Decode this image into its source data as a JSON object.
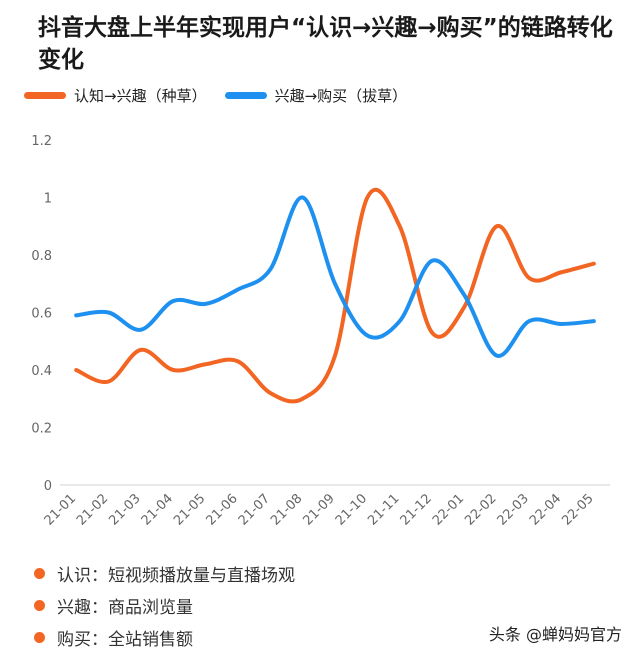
{
  "title": "抖音大盘上半年实现用户“认识→兴趣→购买”的链路转化变化",
  "colors": {
    "orange": "#f26522",
    "blue": "#1e90f0",
    "axis": "#d0d0d0",
    "tick": "#666666"
  },
  "chart_data": {
    "type": "line",
    "categories": [
      "21-01",
      "21-02",
      "21-03",
      "21-04",
      "21-05",
      "21-06",
      "21-07",
      "21-08",
      "21-09",
      "21-10",
      "21-11",
      "21-12",
      "22-01",
      "22-02",
      "22-03",
      "22-04",
      "22-05"
    ],
    "ylim": [
      0,
      1.2
    ],
    "yticks": [
      "0",
      "0.2",
      "0.4",
      "0.6",
      "0.8",
      "1",
      "1.2"
    ],
    "grid": false,
    "legend_position": "top-left",
    "series": [
      {
        "name": "认知→兴趣（种草）",
        "color": "#f26522",
        "values": [
          0.4,
          0.36,
          0.47,
          0.4,
          0.42,
          0.43,
          0.32,
          0.3,
          0.45,
          1.0,
          0.9,
          0.53,
          0.62,
          0.9,
          0.72,
          0.74,
          0.77
        ]
      },
      {
        "name": "兴趣→购买（拔草）",
        "color": "#1e90f0",
        "values": [
          0.59,
          0.6,
          0.54,
          0.64,
          0.63,
          0.68,
          0.75,
          1.0,
          0.7,
          0.52,
          0.57,
          0.78,
          0.66,
          0.45,
          0.57,
          0.56,
          0.57
        ]
      }
    ]
  },
  "notes": [
    "认识：短视频播放量与直播场观",
    "兴趣：商品浏览量",
    "购买：全站销售额"
  ],
  "source": "头条 @蝉妈妈官方"
}
